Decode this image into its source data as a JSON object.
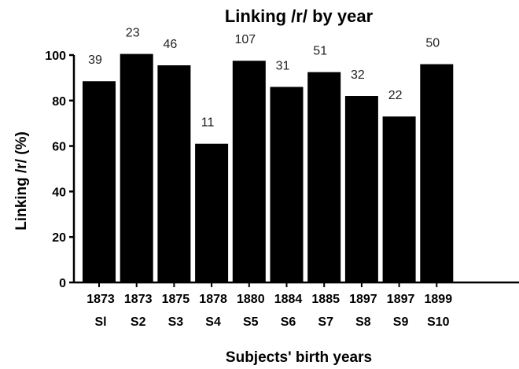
{
  "chart_data": {
    "type": "bar",
    "title": "Linking /r/ by year",
    "xlabel": "Subjects' birth years",
    "ylabel": "Linking /r/ (%)",
    "ylim": [
      0,
      100
    ],
    "yticks": [
      "0",
      "20",
      "40",
      "60",
      "80",
      "100"
    ],
    "grid": false,
    "legend": "none",
    "bar_color": "#000000",
    "years": [
      "1873",
      "1873",
      "1875",
      "1878",
      "1880",
      "1884",
      "1885",
      "1897",
      "1897",
      "1899"
    ],
    "categories": [
      "Sl",
      "S2",
      "S3",
      "S4",
      "S5",
      "S6",
      "S7",
      "S8",
      "S9",
      "S10"
    ],
    "values": [
      88.5,
      100.5,
      95.5,
      61,
      97.5,
      86,
      92.5,
      82,
      73,
      96
    ],
    "data_labels": [
      "39",
      "23",
      "46",
      "11",
      "107",
      "31",
      "51",
      "32",
      "22",
      "50"
    ]
  }
}
